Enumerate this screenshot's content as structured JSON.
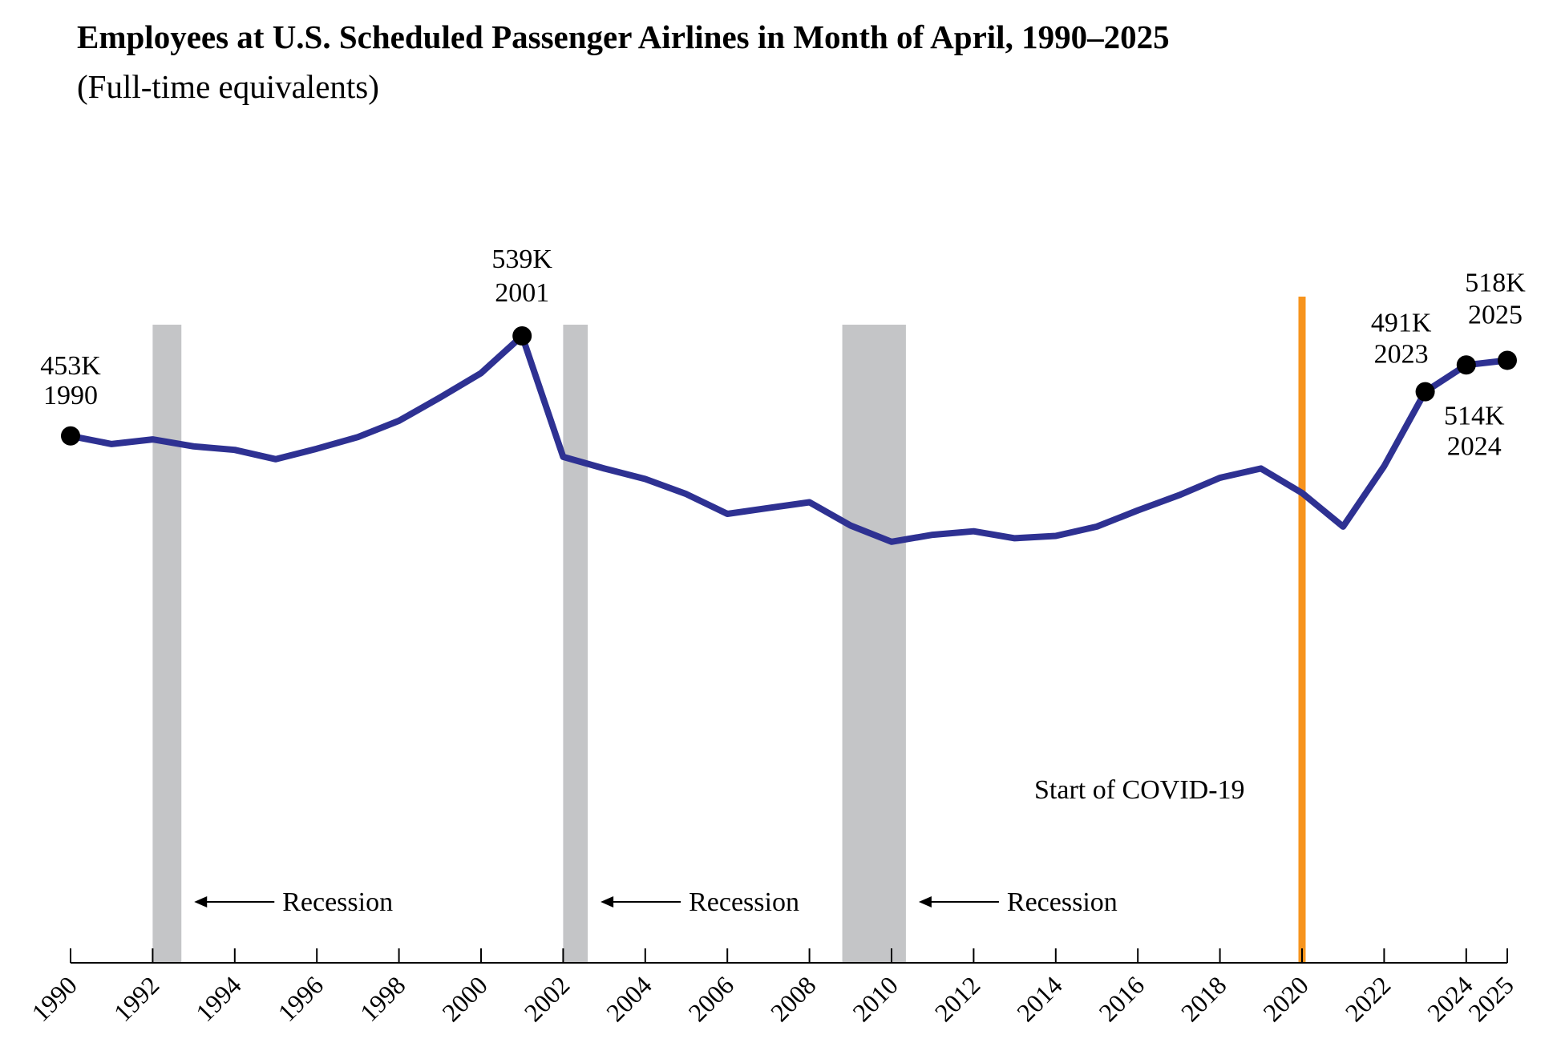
{
  "chart_data": {
    "type": "line",
    "title": "Employees at U.S. Scheduled Passenger Airlines in Month of April, 1990–2025",
    "subtitle": "(Full-time equivalents)",
    "xlabel": "",
    "ylabel": "",
    "grid": false,
    "series": [
      {
        "name": "Employees (FTE)",
        "color": "#2e3192",
        "x": [
          1990,
          1991,
          1992,
          1993,
          1994,
          1995,
          1996,
          1997,
          1998,
          1999,
          2000,
          2001,
          2002,
          2003,
          2004,
          2005,
          2006,
          2007,
          2008,
          2009,
          2010,
          2011,
          2012,
          2013,
          2014,
          2015,
          2016,
          2017,
          2018,
          2019,
          2020,
          2021,
          2022,
          2023,
          2024,
          2025
        ],
        "y": [
          453,
          446,
          450,
          444,
          441,
          433,
          442,
          452,
          466,
          486,
          507,
          539,
          435,
          425,
          416,
          403,
          386,
          391,
          396,
          376,
          362,
          368,
          371,
          365,
          367,
          375,
          389,
          402,
          417,
          425,
          404,
          375,
          427,
          491,
          514,
          518
        ]
      }
    ],
    "annotations": [
      {
        "year": 1990,
        "value_label": "453K",
        "year_label": "1990"
      },
      {
        "year": 2001,
        "value_label": "539K",
        "year_label": "2001"
      },
      {
        "year": 2023,
        "value_label": "491K",
        "year_label": "2023"
      },
      {
        "year": 2024,
        "value_label": "514K",
        "year_label": "2024"
      },
      {
        "year": 2025,
        "value_label": "518K",
        "year_label": "2025"
      }
    ],
    "recessions": [
      {
        "start": 1992.0,
        "end": 1992.7,
        "label": "Recession"
      },
      {
        "start": 2002.0,
        "end": 2002.6,
        "label": "Recession"
      },
      {
        "start": 2008.8,
        "end": 2010.35,
        "label": "Recession"
      }
    ],
    "event_line": {
      "year": 2020.0,
      "label": "Start of COVID-19",
      "color": "#f7941d"
    },
    "recession_color": "#c4c5c7",
    "xlim": [
      1990,
      2025
    ],
    "ylim": [
      0,
      560
    ],
    "x_ticks": [
      1990,
      1992,
      1994,
      1996,
      1998,
      2000,
      2002,
      2004,
      2006,
      2008,
      2010,
      2012,
      2014,
      2016,
      2018,
      2020,
      2022,
      2024,
      2025
    ]
  }
}
